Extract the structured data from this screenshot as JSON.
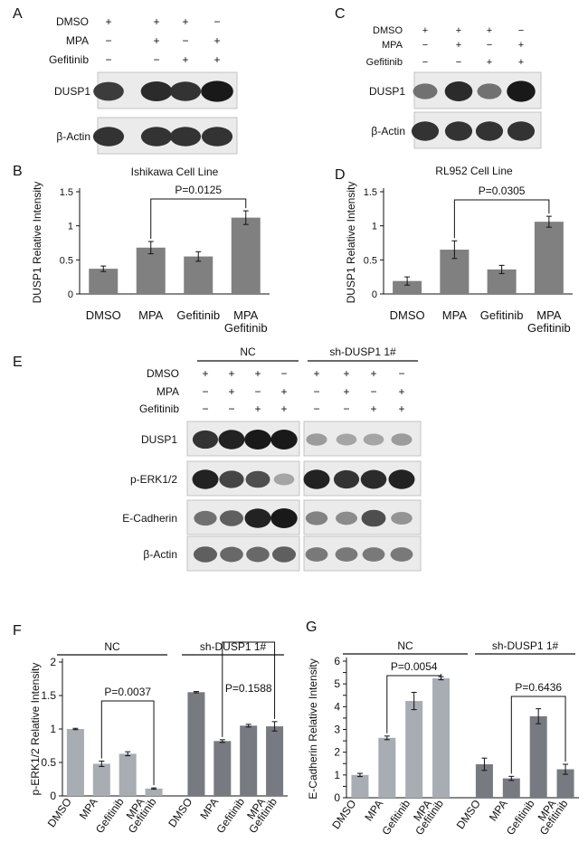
{
  "panels": {
    "A": "A",
    "B": "B",
    "C": "C",
    "D": "D",
    "E": "E",
    "F": "F",
    "G": "G"
  },
  "blotA": {
    "rows": [
      "DMSO",
      "MPA",
      "Gefitinib"
    ],
    "signs": [
      [
        "+",
        "+",
        "+",
        "−"
      ],
      [
        "−",
        "+",
        "−",
        "+"
      ],
      [
        "−",
        "−",
        "+",
        "+"
      ]
    ],
    "band_labels": [
      "DUSP1",
      "β-Actin"
    ],
    "band_intensity": [
      [
        0.8,
        0.9,
        0.85,
        1.0
      ],
      [
        0.85,
        0.85,
        0.85,
        0.85
      ]
    ]
  },
  "blotC": {
    "rows": [
      "DMSO",
      "MPA",
      "Gefitinib"
    ],
    "signs": [
      [
        "+",
        "+",
        "+",
        "−"
      ],
      [
        "−",
        "+",
        "−",
        "+"
      ],
      [
        "−",
        "−",
        "+",
        "+"
      ]
    ],
    "band_labels": [
      "DUSP1",
      "β-Actin"
    ],
    "band_intensity": [
      [
        0.5,
        0.9,
        0.5,
        1.0
      ],
      [
        0.85,
        0.85,
        0.85,
        0.85
      ]
    ]
  },
  "blotE": {
    "groups": [
      "NC",
      "sh-DUSP1 1#"
    ],
    "rows": [
      "DMSO",
      "MPA",
      "Gefitinib"
    ],
    "signs": [
      [
        "+",
        "+",
        "+",
        "−",
        "+",
        "+",
        "+",
        "−"
      ],
      [
        "−",
        "+",
        "−",
        "+",
        "−",
        "+",
        "−",
        "+"
      ],
      [
        "−",
        "−",
        "+",
        "+",
        "−",
        "−",
        "+",
        "+"
      ]
    ],
    "band_labels": [
      "DUSP1",
      "p-ERK1/2",
      "E-Cadherin",
      "β-Actin"
    ],
    "band_intensity": [
      [
        0.85,
        0.95,
        1.0,
        1.0,
        0.25,
        0.2,
        0.2,
        0.25
      ],
      [
        0.95,
        0.75,
        0.7,
        0.2,
        0.95,
        0.85,
        0.9,
        0.95
      ],
      [
        0.5,
        0.6,
        0.95,
        1.0,
        0.4,
        0.35,
        0.7,
        0.3
      ],
      [
        0.6,
        0.55,
        0.55,
        0.6,
        0.45,
        0.45,
        0.45,
        0.45
      ]
    ]
  },
  "chart_data": [
    {
      "id": "B",
      "type": "bar",
      "title": "Ishikawa Cell Line",
      "ylabel": "DUSP1 Relative Intensity",
      "categories": [
        [
          "DMSO"
        ],
        [
          "MPA"
        ],
        [
          "Gefitinib"
        ],
        [
          "MPA",
          "Gefitinib"
        ]
      ],
      "values": [
        0.37,
        0.68,
        0.55,
        1.12
      ],
      "errors": [
        0.04,
        0.09,
        0.07,
        0.1
      ],
      "ylim": [
        0,
        1.5
      ],
      "yticks": [
        "0",
        "0.5",
        "1",
        "1.5"
      ],
      "bracket": {
        "from": 1,
        "to": 3,
        "label": "P=0.0125"
      }
    },
    {
      "id": "D",
      "type": "bar",
      "title": "RL952 Cell Line",
      "ylabel": "DUSP1 Relative Intensity",
      "categories": [
        [
          "DMSO"
        ],
        [
          "MPA"
        ],
        [
          "Gefitinib"
        ],
        [
          "MPA",
          "Gefitinib"
        ]
      ],
      "values": [
        0.19,
        0.65,
        0.36,
        1.06
      ],
      "errors": [
        0.06,
        0.13,
        0.06,
        0.08
      ],
      "ylim": [
        0,
        1.5
      ],
      "yticks": [
        "0",
        "0.5",
        "1",
        "1.5"
      ],
      "bracket": {
        "from": 1,
        "to": 3,
        "label": "P=0.0305"
      }
    },
    {
      "id": "F",
      "type": "bar",
      "ylabel": "p-ERK1/2 Relative Intensity",
      "groups": [
        "NC",
        "sh-DUSP1 1#"
      ],
      "categories": [
        [
          "DMSO"
        ],
        [
          "MPA"
        ],
        [
          "Gefitinib"
        ],
        [
          "MPA",
          "Gefitinib"
        ],
        [
          "DMSO"
        ],
        [
          "MPA"
        ],
        [
          "Gefitinib"
        ],
        [
          "MPA",
          "Gefitinib"
        ]
      ],
      "values": [
        1.0,
        0.48,
        0.63,
        0.11,
        1.55,
        0.82,
        1.05,
        1.04
      ],
      "errors": [
        0.01,
        0.04,
        0.03,
        0.01,
        0.01,
        0.02,
        0.02,
        0.07
      ],
      "ylim": [
        0,
        2
      ],
      "yticks": [
        "0",
        "0.5",
        "1",
        "1.5",
        "2"
      ],
      "brackets": [
        {
          "from": 1,
          "to": 3,
          "label": "P=0.0037"
        },
        {
          "from": 5,
          "to": 7,
          "label": "P=0.1588"
        }
      ]
    },
    {
      "id": "G",
      "type": "bar",
      "ylabel": "E-Cadherin Relative Intensity",
      "groups": [
        "NC",
        "sh-DUSP1 1#"
      ],
      "categories": [
        [
          "DMSO"
        ],
        [
          "MPA"
        ],
        [
          "Gefitinib"
        ],
        [
          "MPA",
          "Gefitinib"
        ],
        [
          "DMSO"
        ],
        [
          "MPA"
        ],
        [
          "Gefitinib"
        ],
        [
          "MPA",
          "Gefitinib"
        ]
      ],
      "values": [
        1.0,
        2.63,
        4.25,
        5.25,
        1.47,
        0.85,
        3.58,
        1.25
      ],
      "errors": [
        0.07,
        0.08,
        0.38,
        0.07,
        0.27,
        0.09,
        0.33,
        0.22
      ],
      "ylim": [
        0,
        6
      ],
      "yticks": [
        "0",
        "0.5",
        "1",
        "1.5",
        "2",
        "2.5",
        "3",
        "3.5",
        "4",
        "4.5",
        "5",
        "5.5",
        "6"
      ],
      "bracket_label_only_ticks": [
        "0",
        "1",
        "2",
        "3",
        "4",
        "5",
        "6"
      ],
      "brackets": [
        {
          "from": 1,
          "to": 3,
          "label": "P=0.0054"
        },
        {
          "from": 5,
          "to": 7,
          "label": "P=0.6436"
        }
      ]
    }
  ]
}
